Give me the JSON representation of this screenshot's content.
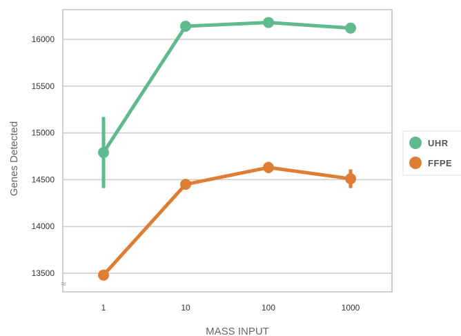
{
  "chart_data": {
    "type": "line",
    "xlabel": "MASS INPUT",
    "ylabel": "Genes Detected",
    "categories": [
      "1",
      "10",
      "100",
      "1000"
    ],
    "yticks": [
      "13500",
      "14000",
      "14500",
      "15000",
      "15500",
      "16000"
    ],
    "ylim": [
      13500,
      16200
    ],
    "grid": true,
    "axis_break": "≈",
    "legend_position": "right",
    "series": [
      {
        "name": "UHR",
        "color": "#5fba8e",
        "values": [
          14790,
          16140,
          16180,
          16120
        ],
        "error_low": [
          14410,
          16100,
          16130,
          16090
        ],
        "error_high": [
          15170,
          16180,
          16220,
          16150
        ]
      },
      {
        "name": "FFPE",
        "color": "#e07d35",
        "values": [
          13480,
          14450,
          14630,
          14510
        ],
        "error_low": [
          13450,
          14430,
          14570,
          14410
        ],
        "error_high": [
          13510,
          14480,
          14690,
          14610
        ]
      }
    ]
  }
}
